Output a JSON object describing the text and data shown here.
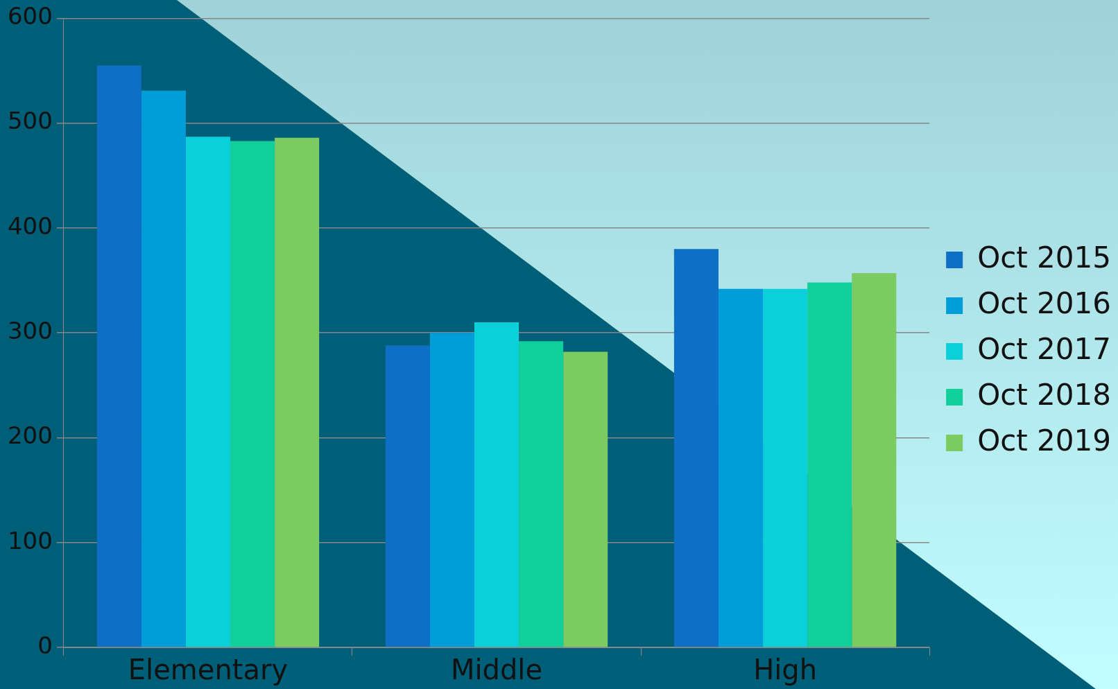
{
  "chart_data": {
    "type": "bar",
    "categories": [
      "Elementary",
      "Middle",
      "High"
    ],
    "series": [
      {
        "name": "Oct 2015",
        "color": "#0e6fc5",
        "values": [
          555,
          288,
          380
        ]
      },
      {
        "name": "Oct 2016",
        "color": "#009dd9",
        "values": [
          531,
          300,
          342
        ]
      },
      {
        "name": "Oct 2017",
        "color": "#0bd0d9",
        "values": [
          487,
          310,
          342
        ]
      },
      {
        "name": "Oct 2018",
        "color": "#10cf9b",
        "values": [
          483,
          292,
          348
        ]
      },
      {
        "name": "Oct 2019",
        "color": "#7cca62",
        "values": [
          486,
          282,
          357
        ]
      }
    ],
    "ylim": [
      0,
      600
    ],
    "yticks": [
      0,
      100,
      200,
      300,
      400,
      500,
      600
    ],
    "grid": "y",
    "legend": "right"
  }
}
